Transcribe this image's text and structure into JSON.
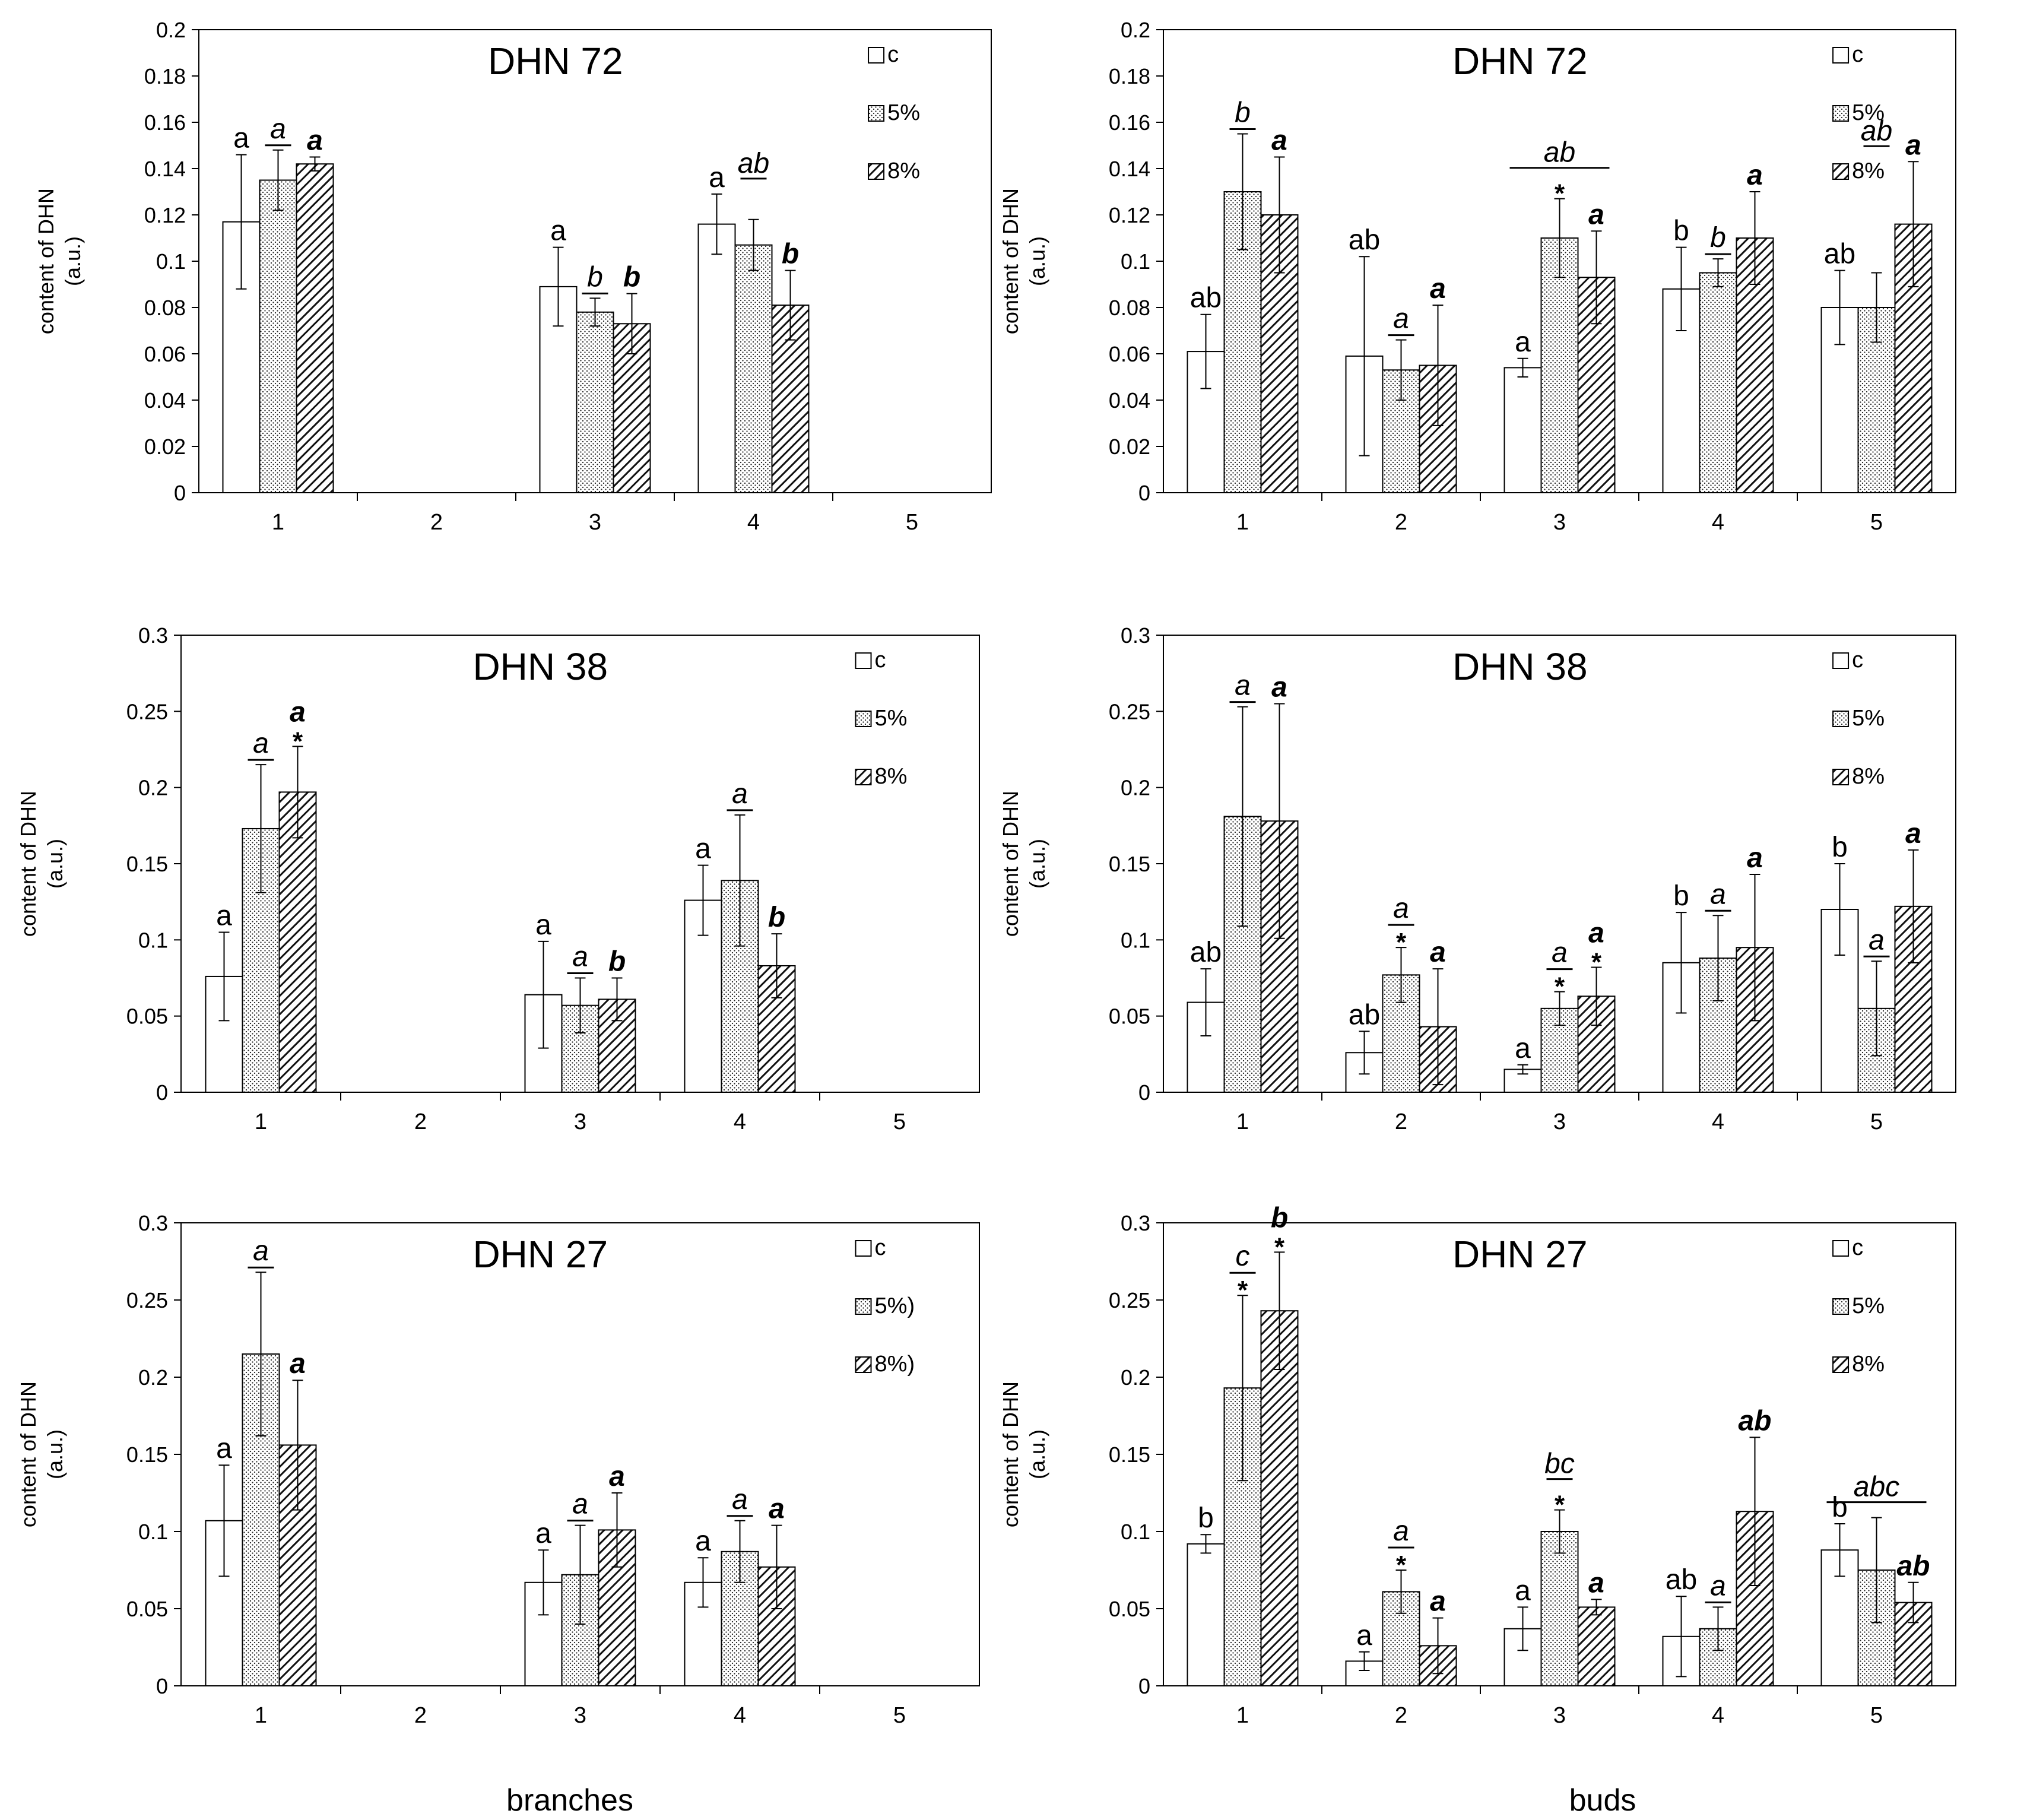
{
  "series_labels": [
    "c",
    "5%",
    "8%"
  ],
  "footer": {
    "left": "branches",
    "right": "buds"
  },
  "chart_data": [
    {
      "type": "bar",
      "id": "dhn72-branches",
      "title": "DHN 72",
      "ylabel": "content of DHN",
      "ylabel2": "(a.u.)",
      "ylim": [
        0,
        0.2
      ],
      "yticks": [
        "0",
        "0.02",
        "0.04",
        "0.06",
        "0.08",
        "0.1",
        "0.12",
        "0.14",
        "0.16",
        "0.18",
        "0.2"
      ],
      "categories": [
        "1",
        "2",
        "3",
        "4",
        "5"
      ],
      "legend": [
        "c",
        "5%",
        "8%"
      ],
      "series": [
        {
          "name": "c",
          "values": [
            0.117,
            null,
            0.089,
            0.116,
            null
          ],
          "errors": [
            0.029,
            null,
            0.017,
            0.013,
            null
          ],
          "letters": [
            "a",
            null,
            "a",
            "a",
            null
          ],
          "stars": [
            false,
            false,
            false,
            false,
            false
          ]
        },
        {
          "name": "5%",
          "values": [
            0.135,
            null,
            0.078,
            0.107,
            null
          ],
          "errors": [
            0.013,
            null,
            0.006,
            0.011,
            null
          ],
          "letters": [
            "a",
            null,
            "b",
            null,
            null
          ],
          "stars": [
            false,
            false,
            false,
            false,
            false
          ]
        },
        {
          "name": "8%",
          "values": [
            0.142,
            null,
            0.073,
            0.081,
            null
          ],
          "errors": [
            0.003,
            null,
            0.013,
            0.015,
            null
          ],
          "letters": [
            "a",
            null,
            "b",
            "b",
            null
          ],
          "stars": [
            false,
            false,
            false,
            false,
            false
          ]
        }
      ],
      "spans": [
        {
          "cat": 3,
          "from": 1,
          "to": 1,
          "label": "ab"
        }
      ]
    },
    {
      "type": "bar",
      "id": "dhn72-buds",
      "title": "DHN 72",
      "ylabel": "content of DHN",
      "ylabel2": "(a.u.)",
      "ylim": [
        0,
        0.2
      ],
      "yticks": [
        "0",
        "0.02",
        "0.04",
        "0.06",
        "0.08",
        "0.1",
        "0.12",
        "0.14",
        "0.16",
        "0.18",
        "0.2"
      ],
      "categories": [
        "1",
        "2",
        "3",
        "4",
        "5"
      ],
      "legend": [
        "c",
        "5%",
        "8%"
      ],
      "series": [
        {
          "name": "c",
          "values": [
            0.061,
            0.059,
            0.054,
            0.088,
            0.08
          ],
          "errors": [
            0.016,
            0.043,
            0.004,
            0.018,
            0.016
          ],
          "letters": [
            "ab",
            "ab",
            "a",
            "b",
            "ab"
          ],
          "stars": [
            false,
            false,
            false,
            false,
            false
          ]
        },
        {
          "name": "5%",
          "values": [
            0.13,
            0.053,
            0.11,
            0.095,
            0.08
          ],
          "errors": [
            0.025,
            0.013,
            0.017,
            0.006,
            0.015
          ],
          "letters": [
            "b",
            "a",
            null,
            "b",
            null
          ],
          "stars": [
            false,
            false,
            true,
            false,
            false
          ]
        },
        {
          "name": "8%",
          "values": [
            0.12,
            0.055,
            0.093,
            0.11,
            0.116
          ],
          "errors": [
            0.025,
            0.026,
            0.02,
            0.02,
            0.027
          ],
          "letters": [
            "a",
            "a",
            "a",
            "a",
            "a"
          ],
          "stars": [
            false,
            false,
            false,
            false,
            false
          ]
        }
      ],
      "spans": [
        {
          "cat": 2,
          "from": 0,
          "to": 2,
          "label": "ab"
        },
        {
          "cat": 4,
          "from": 1,
          "to": 1,
          "label": "ab"
        }
      ]
    },
    {
      "type": "bar",
      "id": "dhn38-branches",
      "title": "DHN 38",
      "ylabel": "content of DHN",
      "ylabel2": "(a.u.)",
      "ylim": [
        0,
        0.3
      ],
      "yticks": [
        "0",
        "0.05",
        "0.1",
        "0.15",
        "0.2",
        "0.25",
        "0.3"
      ],
      "categories": [
        "1",
        "2",
        "3",
        "4",
        "5"
      ],
      "legend": [
        "c",
        "5%",
        "8%"
      ],
      "series": [
        {
          "name": "c",
          "values": [
            0.076,
            null,
            0.064,
            0.126,
            null
          ],
          "errors": [
            0.029,
            null,
            0.035,
            0.023,
            null
          ],
          "letters": [
            "a",
            null,
            "a",
            "a",
            null
          ],
          "stars": [
            false,
            false,
            false,
            false,
            false
          ]
        },
        {
          "name": "5%",
          "values": [
            0.173,
            null,
            0.057,
            0.139,
            null
          ],
          "errors": [
            0.042,
            null,
            0.018,
            0.043,
            null
          ],
          "letters": [
            "a",
            null,
            "a",
            "a",
            null
          ],
          "stars": [
            false,
            false,
            false,
            false,
            false
          ]
        },
        {
          "name": "8%",
          "values": [
            0.197,
            null,
            0.061,
            0.083,
            null
          ],
          "errors": [
            0.03,
            null,
            0.014,
            0.021,
            null
          ],
          "letters": [
            "a",
            null,
            "b",
            "b",
            null
          ],
          "stars": [
            true,
            false,
            false,
            false,
            false
          ]
        }
      ],
      "spans": []
    },
    {
      "type": "bar",
      "id": "dhn38-buds",
      "title": "DHN 38",
      "ylabel": "content of DHN",
      "ylabel2": "(a.u.)",
      "ylim": [
        0,
        0.3
      ],
      "yticks": [
        "0",
        "0.05",
        "0.1",
        "0.15",
        "0.2",
        "0.25",
        "0.3"
      ],
      "categories": [
        "1",
        "2",
        "3",
        "4",
        "5"
      ],
      "legend": [
        "c",
        "5%",
        "8%"
      ],
      "series": [
        {
          "name": "c",
          "values": [
            0.059,
            0.026,
            0.015,
            0.085,
            0.12
          ],
          "errors": [
            0.022,
            0.014,
            0.003,
            0.033,
            0.03
          ],
          "letters": [
            "ab",
            "ab",
            "a",
            "b",
            "b"
          ],
          "stars": [
            false,
            false,
            false,
            false,
            false
          ]
        },
        {
          "name": "5%",
          "values": [
            0.181,
            0.077,
            0.055,
            0.088,
            0.055
          ],
          "errors": [
            0.072,
            0.018,
            0.011,
            0.028,
            0.031
          ],
          "letters": [
            "a",
            "a",
            "a",
            "a",
            "a"
          ],
          "stars": [
            false,
            true,
            true,
            false,
            false
          ]
        },
        {
          "name": "8%",
          "values": [
            0.178,
            0.043,
            0.063,
            0.095,
            0.122
          ],
          "errors": [
            0.077,
            0.038,
            0.019,
            0.048,
            0.037
          ],
          "letters": [
            "a",
            "a",
            "a",
            "a",
            "a"
          ],
          "stars": [
            false,
            false,
            true,
            false,
            false
          ]
        }
      ],
      "spans": []
    },
    {
      "type": "bar",
      "id": "dhn27-branches",
      "title": "DHN 27",
      "ylabel": "content of DHN",
      "ylabel2": "(a.u.)",
      "ylim": [
        0,
        0.3
      ],
      "yticks": [
        "0",
        "0.05",
        "0.1",
        "0.15",
        "0.2",
        "0.25",
        "0.3"
      ],
      "categories": [
        "1",
        "2",
        "3",
        "4",
        "5"
      ],
      "legend": [
        "c",
        "5%)",
        "8%)"
      ],
      "series": [
        {
          "name": "c",
          "values": [
            0.107,
            null,
            0.067,
            0.067,
            null
          ],
          "errors": [
            0.036,
            null,
            0.021,
            0.016,
            null
          ],
          "letters": [
            "a",
            null,
            "a",
            "a",
            null
          ],
          "stars": [
            false,
            false,
            false,
            false,
            false
          ]
        },
        {
          "name": "5%",
          "values": [
            0.215,
            null,
            0.072,
            0.087,
            null
          ],
          "errors": [
            0.053,
            null,
            0.032,
            0.02,
            null
          ],
          "letters": [
            "a",
            null,
            "a",
            "a",
            null
          ],
          "stars": [
            false,
            false,
            false,
            false,
            false
          ]
        },
        {
          "name": "8%",
          "values": [
            0.156,
            null,
            0.101,
            0.077,
            null
          ],
          "errors": [
            0.042,
            null,
            0.024,
            0.027,
            null
          ],
          "letters": [
            "a",
            null,
            "a",
            "a",
            null
          ],
          "stars": [
            false,
            false,
            false,
            false,
            false
          ]
        }
      ],
      "spans": []
    },
    {
      "type": "bar",
      "id": "dhn27-buds",
      "title": "DHN 27",
      "ylabel": "content of DHN",
      "ylabel2": "(a.u.)",
      "ylim": [
        0,
        0.3
      ],
      "yticks": [
        "0",
        "0.05",
        "0.1",
        "0.15",
        "0.2",
        "0.25",
        "0.3"
      ],
      "categories": [
        "1",
        "2",
        "3",
        "4",
        "5"
      ],
      "legend": [
        "c",
        "5%",
        "8%"
      ],
      "series": [
        {
          "name": "c",
          "values": [
            0.092,
            0.016,
            0.037,
            0.032,
            0.088
          ],
          "errors": [
            0.006,
            0.006,
            0.014,
            0.026,
            0.017
          ],
          "letters": [
            "b",
            "a",
            "a",
            "ab",
            "b"
          ],
          "stars": [
            false,
            false,
            false,
            false,
            false
          ]
        },
        {
          "name": "5%",
          "values": [
            0.193,
            0.061,
            0.1,
            0.037,
            0.075
          ],
          "errors": [
            0.06,
            0.014,
            0.014,
            0.014,
            0.034
          ],
          "letters": [
            "c",
            "a",
            null,
            "a",
            null
          ],
          "stars": [
            true,
            true,
            true,
            false,
            false
          ]
        },
        {
          "name": "8%",
          "values": [
            0.243,
            0.026,
            0.051,
            0.113,
            0.054
          ],
          "errors": [
            0.038,
            0.018,
            0.005,
            0.048,
            0.013
          ],
          "letters": [
            "b",
            "a",
            "a",
            "ab",
            "ab"
          ],
          "stars": [
            true,
            false,
            false,
            false,
            false
          ]
        }
      ],
      "spans": [
        {
          "cat": 2,
          "from": 1,
          "to": 1,
          "label": "bc"
        },
        {
          "cat": 4,
          "from": 0,
          "to": 2,
          "label": "abc"
        }
      ]
    }
  ]
}
